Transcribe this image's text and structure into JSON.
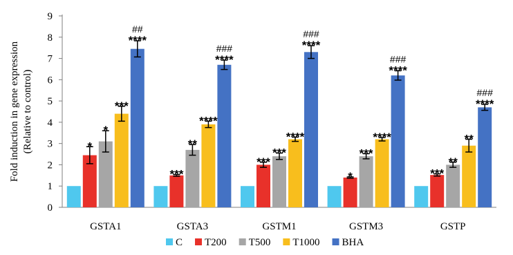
{
  "chart_data": {
    "type": "bar",
    "ylabel_lines": [
      "Fold induction in gene expression",
      "(Relative to control)"
    ],
    "xlabel": "",
    "ylim": [
      0,
      9
    ],
    "yticks": [
      0,
      1,
      2,
      3,
      4,
      5,
      6,
      7,
      8,
      9
    ],
    "grid": false,
    "legend_position": "bottom",
    "categories": [
      "GSTA1",
      "GSTA3",
      "GSTM1",
      "GSTM3",
      "GSTP"
    ],
    "series": [
      {
        "name": "C",
        "color": "#4fc8ee",
        "values": [
          1.0,
          1.0,
          1.0,
          1.0,
          1.0
        ],
        "errors": [
          0,
          0,
          0,
          0,
          0
        ],
        "labels": [
          "",
          "",
          "",
          "",
          ""
        ]
      },
      {
        "name": "T200",
        "color": "#e8312a",
        "values": [
          2.45,
          1.5,
          2.0,
          1.4,
          1.52
        ],
        "errors": [
          0.4,
          0.04,
          0.12,
          0.03,
          0.05
        ],
        "labels": [
          "*",
          "***",
          "***",
          "*",
          "***"
        ]
      },
      {
        "name": "T500",
        "color": "#a6a6a6",
        "values": [
          3.1,
          2.7,
          2.4,
          2.4,
          2.0
        ],
        "errors": [
          0.5,
          0.25,
          0.15,
          0.12,
          0.12
        ],
        "labels": [
          "*",
          "**",
          "***",
          "***",
          "**"
        ]
      },
      {
        "name": "T1000",
        "color": "#f8be1d",
        "values": [
          4.4,
          3.9,
          3.2,
          3.2,
          2.9
        ],
        "errors": [
          0.35,
          0.15,
          0.1,
          0.08,
          0.3
        ],
        "labels": [
          "***",
          "****",
          "****",
          "****",
          "**"
        ]
      },
      {
        "name": "BHA",
        "color": "#4472c4",
        "values": [
          7.45,
          6.7,
          7.3,
          6.2,
          4.7
        ],
        "errors": [
          0.38,
          0.22,
          0.3,
          0.22,
          0.14
        ],
        "labels": [
          "****",
          "****",
          "****",
          "****",
          "****"
        ],
        "labels2": [
          "##",
          "###",
          "###",
          "###",
          "###"
        ]
      }
    ]
  }
}
